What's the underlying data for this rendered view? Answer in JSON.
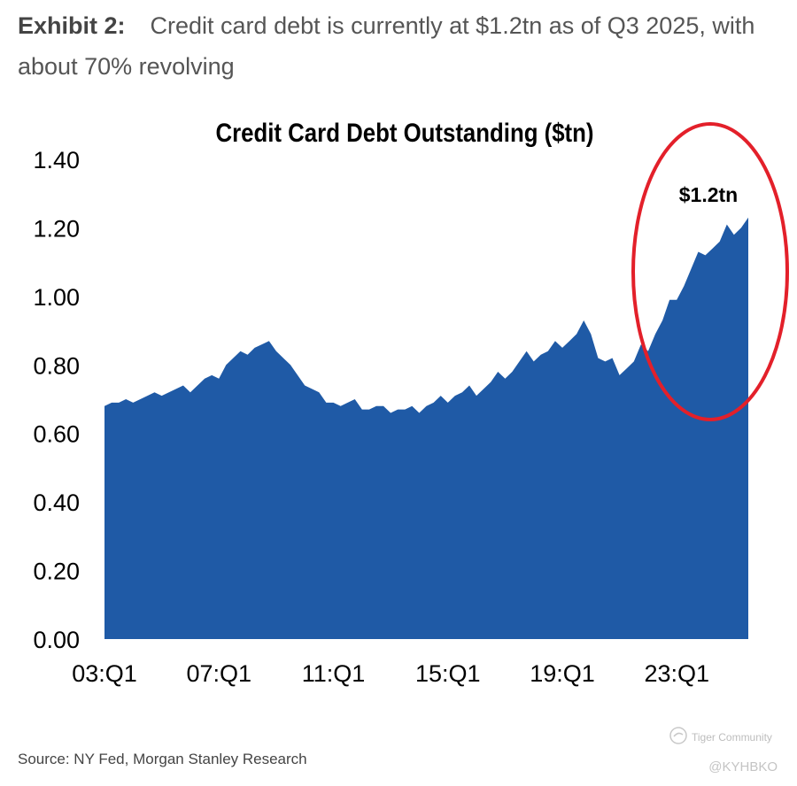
{
  "exhibit": {
    "label": "Exhibit 2:",
    "headline": "Credit card debt is currently at $1.2tn as of Q3 2025, with about 70% revolving"
  },
  "source": "Source: NY Fed, Morgan Stanley Research",
  "watermark": {
    "brand": "Tiger Community",
    "user": "@KYHBKO"
  },
  "colors": {
    "area": "#1f5aa6",
    "circle": "#e3202a",
    "text": "#000000"
  },
  "chart_data": {
    "type": "area",
    "title": "Credit Card Debt Outstanding ($tn)",
    "xlabel": "",
    "ylabel": "",
    "ylim": [
      0,
      1.4
    ],
    "yticks": [
      "0.00",
      "0.20",
      "0.40",
      "0.60",
      "0.80",
      "1.00",
      "1.20",
      "1.40"
    ],
    "xticks": [
      "03:Q1",
      "07:Q1",
      "11:Q1",
      "15:Q1",
      "19:Q1",
      "23:Q1"
    ],
    "annotation": "$1.2tn",
    "series": [
      {
        "name": "Credit Card Debt Outstanding ($tn)",
        "x": [
          "03:Q1",
          "03:Q2",
          "03:Q3",
          "03:Q4",
          "04:Q1",
          "04:Q2",
          "04:Q3",
          "04:Q4",
          "05:Q1",
          "05:Q2",
          "05:Q3",
          "05:Q4",
          "06:Q1",
          "06:Q2",
          "06:Q3",
          "06:Q4",
          "07:Q1",
          "07:Q2",
          "07:Q3",
          "07:Q4",
          "08:Q1",
          "08:Q2",
          "08:Q3",
          "08:Q4",
          "09:Q1",
          "09:Q2",
          "09:Q3",
          "09:Q4",
          "10:Q1",
          "10:Q2",
          "10:Q3",
          "10:Q4",
          "11:Q1",
          "11:Q2",
          "11:Q3",
          "11:Q4",
          "12:Q1",
          "12:Q2",
          "12:Q3",
          "12:Q4",
          "13:Q1",
          "13:Q2",
          "13:Q3",
          "13:Q4",
          "14:Q1",
          "14:Q2",
          "14:Q3",
          "14:Q4",
          "15:Q1",
          "15:Q2",
          "15:Q3",
          "15:Q4",
          "16:Q1",
          "16:Q2",
          "16:Q3",
          "16:Q4",
          "17:Q1",
          "17:Q2",
          "17:Q3",
          "17:Q4",
          "18:Q1",
          "18:Q2",
          "18:Q3",
          "18:Q4",
          "19:Q1",
          "19:Q2",
          "19:Q3",
          "19:Q4",
          "20:Q1",
          "20:Q2",
          "20:Q3",
          "20:Q4",
          "21:Q1",
          "21:Q2",
          "21:Q3",
          "21:Q4",
          "22:Q1",
          "22:Q2",
          "22:Q3",
          "22:Q4",
          "23:Q1",
          "23:Q2",
          "23:Q3",
          "23:Q4",
          "24:Q1",
          "24:Q2",
          "24:Q3",
          "24:Q4",
          "25:Q1",
          "25:Q2",
          "25:Q3"
        ],
        "values": [
          0.68,
          0.69,
          0.69,
          0.7,
          0.69,
          0.7,
          0.71,
          0.72,
          0.71,
          0.72,
          0.73,
          0.74,
          0.72,
          0.74,
          0.76,
          0.77,
          0.76,
          0.8,
          0.82,
          0.84,
          0.83,
          0.85,
          0.86,
          0.87,
          0.84,
          0.82,
          0.8,
          0.77,
          0.74,
          0.73,
          0.72,
          0.69,
          0.69,
          0.68,
          0.69,
          0.7,
          0.67,
          0.67,
          0.68,
          0.68,
          0.66,
          0.67,
          0.67,
          0.68,
          0.66,
          0.68,
          0.69,
          0.71,
          0.69,
          0.71,
          0.72,
          0.74,
          0.71,
          0.73,
          0.75,
          0.78,
          0.76,
          0.78,
          0.81,
          0.84,
          0.81,
          0.83,
          0.84,
          0.87,
          0.85,
          0.87,
          0.89,
          0.93,
          0.89,
          0.82,
          0.81,
          0.82,
          0.77,
          0.79,
          0.81,
          0.86,
          0.84,
          0.89,
          0.93,
          0.99,
          0.99,
          1.03,
          1.08,
          1.13,
          1.12,
          1.14,
          1.16,
          1.21,
          1.18,
          1.2,
          1.23
        ]
      }
    ]
  }
}
